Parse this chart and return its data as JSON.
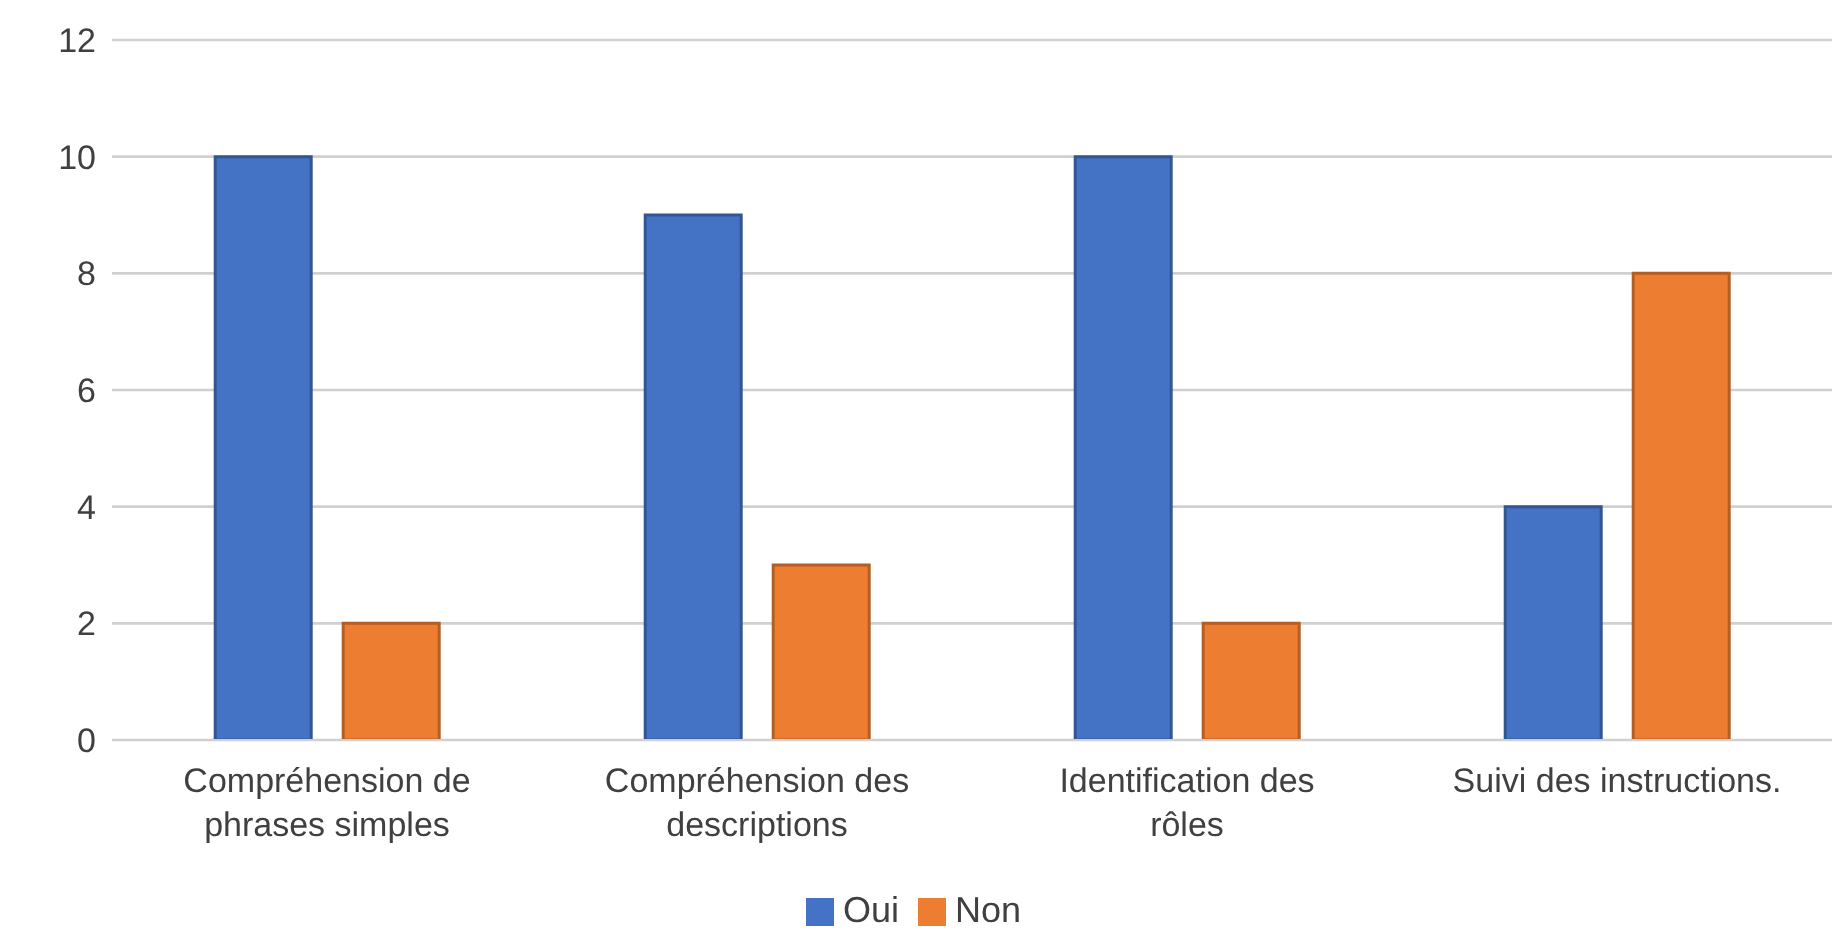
{
  "chart_data": {
    "type": "bar",
    "categories": [
      "Compréhension de phrases simples",
      "Compréhension des descriptions",
      "Identification des rôles",
      "Suivi des instructions."
    ],
    "series": [
      {
        "name": "Oui",
        "color": "#4472c4",
        "values": [
          10,
          9,
          10,
          4
        ]
      },
      {
        "name": "Non",
        "color": "#ed7d31",
        "values": [
          2,
          3,
          2,
          8
        ]
      }
    ],
    "ylim": [
      0,
      12
    ],
    "yticks": [
      0,
      2,
      4,
      6,
      8,
      10,
      12
    ],
    "grid": "y",
    "legend": "bottom"
  }
}
